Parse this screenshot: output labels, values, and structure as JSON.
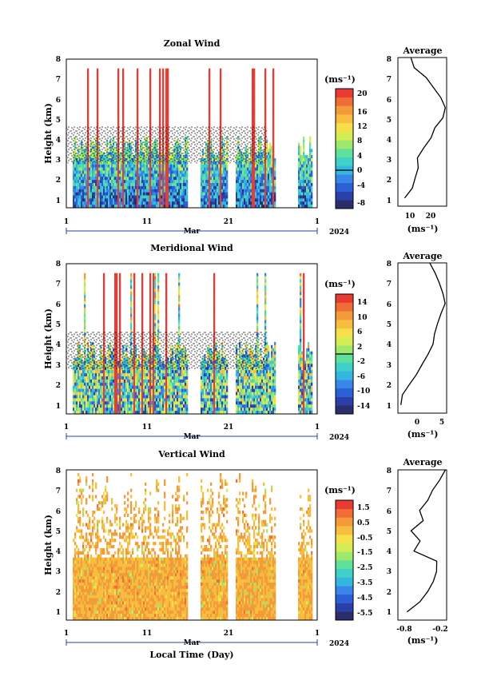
{
  "palette": [
    "#2a2f6b",
    "#2b3fa8",
    "#2a5fd6",
    "#3a86e8",
    "#33b7e0",
    "#3fd0c8",
    "#5fe09b",
    "#9ee86b",
    "#d6ec55",
    "#f5e04a",
    "#f6bd3e",
    "#f39a3a",
    "#ef6e37",
    "#e83b33"
  ],
  "chart_data": [
    {
      "type": "heatmap",
      "name_key": "zonal",
      "title": "Zonal Wind",
      "ylabel": "Height (km)",
      "yticks": [
        "1",
        "2",
        "3",
        "4",
        "5",
        "6",
        "7",
        "8"
      ],
      "ylim": [
        0.6,
        8
      ],
      "xticks": [
        "1",
        "11",
        "21",
        "1"
      ],
      "month": "Mar",
      "year": "2024",
      "colorbar": {
        "unit": "(ms⁻¹)",
        "ticks": [
          "20",
          "16",
          "12",
          "8",
          "4",
          "0",
          "-4",
          "-8"
        ],
        "range": [
          -10,
          22
        ]
      },
      "profile": {
        "title": "Average",
        "xticks": [
          "10",
          "20"
        ],
        "xlim": [
          5,
          28
        ],
        "xlabel": "(ms⁻¹)",
        "heights": [
          1.0,
          1.5,
          2.0,
          2.5,
          3.0,
          3.5,
          4.0,
          4.5,
          5.0,
          5.5,
          6.0,
          6.5,
          7.0,
          7.5,
          8.0
        ],
        "values": [
          8,
          12,
          13,
          14,
          14,
          17,
          21,
          22,
          26,
          27,
          25,
          22,
          18,
          13,
          11
        ]
      }
    },
    {
      "type": "heatmap",
      "name_key": "meridional",
      "title": "Meridional Wind",
      "ylabel": "Height (km)",
      "yticks": [
        "1",
        "2",
        "3",
        "4",
        "5",
        "6",
        "7",
        "8"
      ],
      "ylim": [
        0.6,
        8
      ],
      "xticks": [
        "1",
        "11",
        "21",
        "1"
      ],
      "month": "Mar",
      "year": "2024",
      "colorbar": {
        "unit": "(ms⁻¹)",
        "ticks": [
          "14",
          "10",
          "6",
          "2",
          "-2",
          "-6",
          "-10",
          "-14"
        ],
        "range": [
          -16,
          16
        ]
      },
      "profile": {
        "title": "Average",
        "xticks": [
          "0",
          "5"
        ],
        "xlim": [
          -4,
          6
        ],
        "xlabel": "(ms⁻¹)",
        "heights": [
          1.0,
          1.5,
          2.0,
          2.5,
          3.0,
          3.5,
          4.0,
          4.5,
          5.0,
          5.5,
          6.0,
          6.5,
          7.0,
          7.5,
          8.0
        ],
        "values": [
          -3.5,
          -3,
          -1.5,
          0,
          1,
          2,
          3,
          3.5,
          4,
          5,
          5.5,
          5,
          4.5,
          3.5,
          2.5
        ]
      }
    },
    {
      "type": "heatmap",
      "name_key": "vertical",
      "title": "Vertical Wind",
      "ylabel": "Height (km)",
      "yticks": [
        "1",
        "2",
        "3",
        "4",
        "5",
        "6",
        "7",
        "8"
      ],
      "ylim": [
        0.6,
        8
      ],
      "xticks": [
        "1",
        "11",
        "21",
        "1"
      ],
      "month": "Mar",
      "year": "2024",
      "xlabel": "Local Time (Day)",
      "colorbar": {
        "unit": "(ms⁻¹)",
        "ticks": [
          "1.5",
          "0.5",
          "-0.5",
          "-1.5",
          "-2.5",
          "-3.5",
          "-4.5",
          "-5.5"
        ],
        "range": [
          -6,
          2
        ]
      },
      "profile": {
        "title": "Average",
        "xticks": [
          "-0.8",
          "-0.2"
        ],
        "xlim": [
          -0.9,
          -0.15
        ],
        "xlabel": "(ms⁻¹)",
        "heights": [
          1.0,
          1.5,
          2.0,
          2.5,
          3.0,
          3.5,
          4.0,
          4.5,
          5.0,
          5.5,
          6.0,
          6.5,
          7.0,
          7.5,
          8.0
        ],
        "values": [
          -0.75,
          -0.55,
          -0.45,
          -0.35,
          -0.3,
          -0.32,
          -0.65,
          -0.55,
          -0.7,
          -0.5,
          -0.55,
          -0.45,
          -0.35,
          -0.25,
          -0.18
        ]
      }
    }
  ]
}
